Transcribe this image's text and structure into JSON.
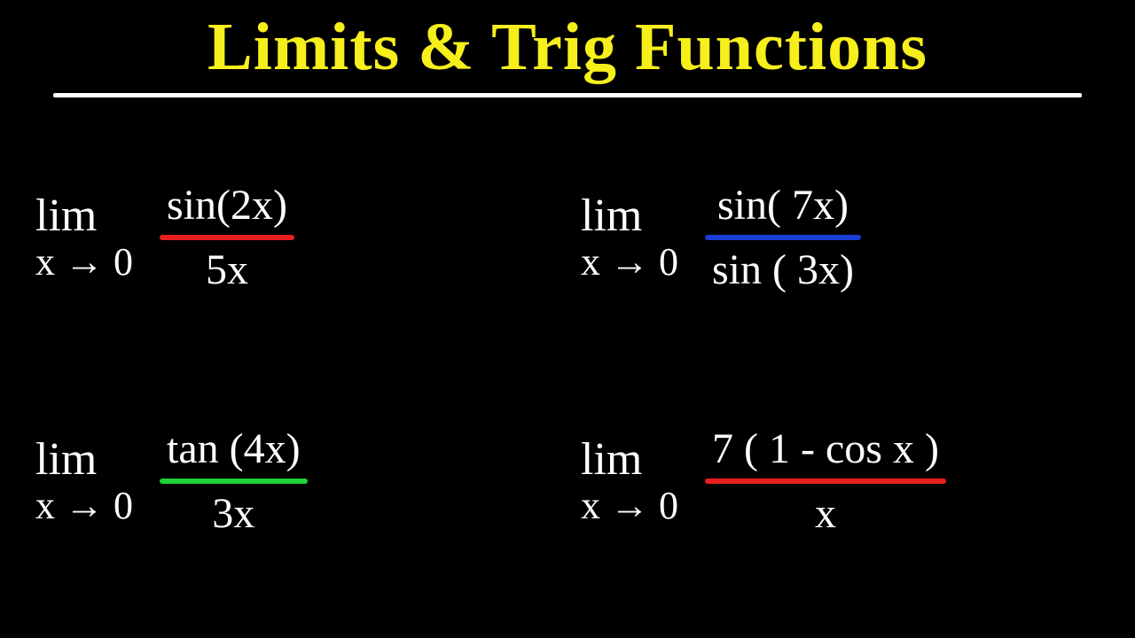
{
  "colors": {
    "background": "#000000",
    "title": "#f6ef1c",
    "text": "#ffffff",
    "underline": "#ffffff",
    "red": "#e81f1f",
    "blue": "#1a3fd6",
    "green": "#1fd13a"
  },
  "title": "Limits & Trig Functions",
  "title_fontsize": 76,
  "text_fontsize": 50,
  "problems": [
    {
      "lim_top": "lim",
      "lim_bot": "x → 0",
      "numerator": "sin(2x)",
      "denominator": "5x",
      "line_color": "#e81f1f"
    },
    {
      "lim_top": "lim",
      "lim_bot": "x → 0",
      "numerator": "sin( 7x)",
      "denominator": "sin ( 3x)",
      "line_color": "#1a3fd6"
    },
    {
      "lim_top": "lim",
      "lim_bot": "x → 0",
      "numerator": "tan (4x)",
      "denominator": "3x",
      "line_color": "#1fd13a"
    },
    {
      "lim_top": "lim",
      "lim_bot": "x → 0",
      "numerator": "7 ( 1 - cos x )",
      "denominator": "x",
      "line_color": "#e81f1f"
    }
  ]
}
